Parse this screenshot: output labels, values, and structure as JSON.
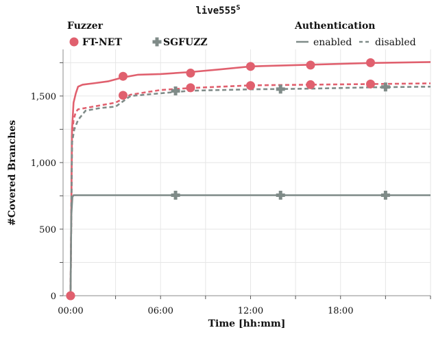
{
  "chart_data": {
    "type": "line",
    "title": "live555",
    "title_superscript": "S",
    "xlabel": "Time [hh:mm]",
    "ylabel": "#Covered Branches",
    "xlim_hours": [
      -0.5,
      24.0
    ],
    "ylim": [
      0,
      1850
    ],
    "x_ticks": [
      {
        "value": 0,
        "label": "00:00"
      },
      {
        "value": 6,
        "label": "06:00"
      },
      {
        "value": 12,
        "label": "12:00"
      },
      {
        "value": 18,
        "label": "18:00"
      }
    ],
    "y_ticks": [
      {
        "value": 0,
        "label": "0"
      },
      {
        "value": 500,
        "label": "500"
      },
      {
        "value": 1000,
        "label": "1,000"
      },
      {
        "value": 1500,
        "label": "1,500"
      }
    ],
    "grid": true,
    "legend": {
      "fuzzer_title": "Fuzzer",
      "auth_title": "Authentication",
      "fuzzers": [
        {
          "name": "FT-NET",
          "marker": "circle",
          "color": "#e0606e"
        },
        {
          "name": "SGFUZZ",
          "marker": "plus",
          "color": "#7f8b88"
        }
      ],
      "auth": [
        {
          "name": "enabled",
          "dash": "solid"
        },
        {
          "name": "disabled",
          "dash": "dashed"
        }
      ],
      "placement": "top"
    },
    "series": [
      {
        "name": "FT-NET enabled",
        "fuzzer": "FT-NET",
        "auth": "enabled",
        "color": "#e0606e",
        "x": [
          0,
          0.1,
          0.2,
          0.35,
          0.5,
          0.8,
          1.5,
          2.5,
          3.5,
          4.5,
          6.0,
          8.0,
          10.0,
          12.0,
          16.0,
          20.0,
          24.0
        ],
        "y": [
          0,
          1250,
          1450,
          1520,
          1570,
          1585,
          1595,
          1610,
          1640,
          1660,
          1665,
          1680,
          1700,
          1722,
          1735,
          1748,
          1755
        ],
        "markers_x": [
          0,
          3.5,
          8.0,
          12.0,
          16.0,
          20.0
        ],
        "markers_y": [
          0,
          1648,
          1672,
          1722,
          1732,
          1750
        ]
      },
      {
        "name": "FT-NET disabled",
        "fuzzer": "FT-NET",
        "auth": "disabled",
        "color": "#e0606e",
        "x": [
          0,
          0.1,
          0.2,
          0.35,
          0.5,
          1.0,
          2.0,
          3.0,
          4.0,
          6.0,
          8.0,
          12.0,
          16.0,
          20.0,
          24.0
        ],
        "y": [
          0,
          1200,
          1320,
          1380,
          1400,
          1410,
          1430,
          1450,
          1510,
          1545,
          1560,
          1580,
          1585,
          1590,
          1595
        ],
        "markers_x": [
          0,
          3.5,
          8.0,
          12.0,
          16.0,
          20.0
        ],
        "markers_y": [
          0,
          1505,
          1562,
          1578,
          1585,
          1590
        ]
      },
      {
        "name": "SGFUZZ enabled",
        "fuzzer": "SGFUZZ",
        "auth": "enabled",
        "color": "#7f8b88",
        "x": [
          0,
          0.05,
          0.12,
          0.2,
          24.0
        ],
        "y": [
          0,
          600,
          740,
          755,
          755
        ],
        "markers_x": [
          7.0,
          14.0,
          21.0
        ],
        "markers_y": [
          755,
          755,
          755
        ]
      },
      {
        "name": "SGFUZZ disabled",
        "fuzzer": "SGFUZZ",
        "auth": "disabled",
        "color": "#7f8b88",
        "x": [
          0,
          0.1,
          0.25,
          0.5,
          1.0,
          2.0,
          3.0,
          4.0,
          6.0,
          8.0,
          12.0,
          16.0,
          20.0,
          24.0
        ],
        "y": [
          0,
          1150,
          1250,
          1320,
          1390,
          1410,
          1420,
          1500,
          1520,
          1540,
          1550,
          1555,
          1565,
          1570
        ],
        "markers_x": [
          7.0,
          14.0,
          21.0
        ],
        "markers_y": [
          1538,
          1552,
          1568
        ]
      }
    ]
  }
}
